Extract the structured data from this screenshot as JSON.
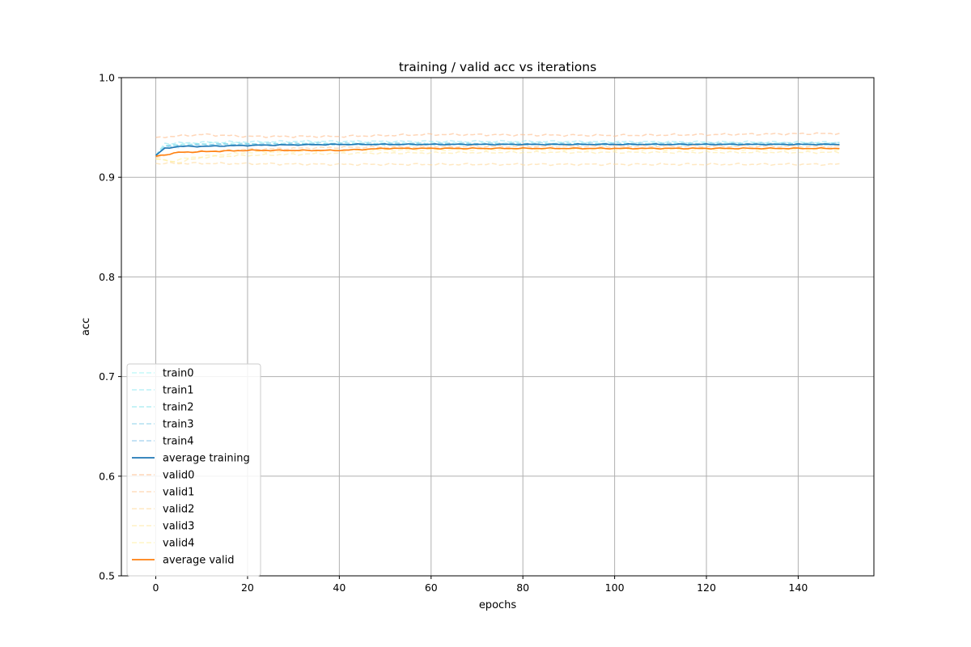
{
  "chart_data": {
    "type": "line",
    "title": "training / valid acc vs iterations",
    "xlabel": "epochs",
    "ylabel": "acc",
    "xlim": [
      -7.5,
      156.5
    ],
    "ylim": [
      0.5,
      1.0
    ],
    "xticks": [
      0,
      20,
      40,
      60,
      80,
      100,
      120,
      140
    ],
    "yticks": [
      0.5,
      0.6,
      0.7,
      0.8,
      0.9,
      1.0
    ],
    "ytick_labels": [
      "0.5",
      "0.6",
      "0.7",
      "0.8",
      "0.9",
      "1.0"
    ],
    "grid": true,
    "legend_position": "lower-left",
    "n_epochs": 150,
    "series": [
      {
        "name": "train0",
        "color": "#9ef3f3",
        "style": "dashed",
        "alpha": 0.6,
        "anchors": [
          [
            0,
            0.922
          ],
          [
            2,
            0.932
          ],
          [
            10,
            0.934
          ],
          [
            30,
            0.934
          ],
          [
            80,
            0.934
          ],
          [
            149,
            0.934
          ]
        ]
      },
      {
        "name": "train1",
        "color": "#8fe6f2",
        "style": "dashed",
        "alpha": 0.6,
        "anchors": [
          [
            0,
            0.922
          ],
          [
            2,
            0.934
          ],
          [
            10,
            0.935
          ],
          [
            30,
            0.936
          ],
          [
            80,
            0.936
          ],
          [
            149,
            0.935
          ]
        ]
      },
      {
        "name": "train2",
        "color": "#82e3ec",
        "style": "dashed",
        "alpha": 0.6,
        "anchors": [
          [
            0,
            0.921
          ],
          [
            2,
            0.932
          ],
          [
            10,
            0.933
          ],
          [
            30,
            0.933
          ],
          [
            80,
            0.933
          ],
          [
            149,
            0.933
          ]
        ]
      },
      {
        "name": "train3",
        "color": "#7fcde6",
        "style": "dashed",
        "alpha": 0.6,
        "anchors": [
          [
            0,
            0.922
          ],
          [
            2,
            0.931
          ],
          [
            10,
            0.933
          ],
          [
            30,
            0.934
          ],
          [
            80,
            0.934
          ],
          [
            149,
            0.934
          ]
        ]
      },
      {
        "name": "train4",
        "color": "#7fbfe6",
        "style": "dashed",
        "alpha": 0.6,
        "anchors": [
          [
            0,
            0.922
          ],
          [
            2,
            0.93
          ],
          [
            10,
            0.932
          ],
          [
            30,
            0.933
          ],
          [
            80,
            0.933
          ],
          [
            149,
            0.933
          ]
        ]
      },
      {
        "name": "average training",
        "color": "#1f77b4",
        "style": "solid",
        "alpha": 1.0,
        "anchors": [
          [
            0,
            0.922
          ],
          [
            2,
            0.929
          ],
          [
            5,
            0.931
          ],
          [
            10,
            0.931
          ],
          [
            20,
            0.932
          ],
          [
            40,
            0.933
          ],
          [
            80,
            0.933
          ],
          [
            149,
            0.933
          ]
        ]
      },
      {
        "name": "valid0",
        "color": "#ffbb88",
        "style": "dashed",
        "alpha": 0.6,
        "anchors": [
          [
            0,
            0.94
          ],
          [
            10,
            0.943
          ],
          [
            20,
            0.941
          ],
          [
            40,
            0.941
          ],
          [
            60,
            0.943
          ],
          [
            100,
            0.942
          ],
          [
            149,
            0.944
          ]
        ]
      },
      {
        "name": "valid1",
        "color": "#ffc894",
        "style": "dashed",
        "alpha": 0.6,
        "anchors": [
          [
            0,
            0.92
          ],
          [
            5,
            0.925
          ],
          [
            20,
            0.928
          ],
          [
            40,
            0.93
          ],
          [
            80,
            0.931
          ],
          [
            149,
            0.931
          ]
        ]
      },
      {
        "name": "valid2",
        "color": "#ffd89a",
        "style": "dashed",
        "alpha": 0.6,
        "anchors": [
          [
            0,
            0.914
          ],
          [
            10,
            0.914
          ],
          [
            40,
            0.913
          ],
          [
            80,
            0.913
          ],
          [
            149,
            0.913
          ]
        ]
      },
      {
        "name": "valid3",
        "color": "#ffe79c",
        "style": "dashed",
        "alpha": 0.6,
        "anchors": [
          [
            0,
            0.918
          ],
          [
            5,
            0.915
          ],
          [
            10,
            0.92
          ],
          [
            20,
            0.922
          ],
          [
            40,
            0.924
          ],
          [
            80,
            0.925
          ],
          [
            149,
            0.925
          ]
        ]
      },
      {
        "name": "valid4",
        "color": "#fff0a0",
        "style": "dashed",
        "alpha": 0.6,
        "anchors": [
          [
            0,
            0.919
          ],
          [
            3,
            0.916
          ],
          [
            8,
            0.92
          ],
          [
            20,
            0.925
          ],
          [
            40,
            0.927
          ],
          [
            80,
            0.928
          ],
          [
            149,
            0.928
          ]
        ]
      },
      {
        "name": "average valid",
        "color": "#ff7f0e",
        "style": "solid",
        "alpha": 1.0,
        "anchors": [
          [
            0,
            0.921
          ],
          [
            5,
            0.925
          ],
          [
            20,
            0.927
          ],
          [
            40,
            0.927
          ],
          [
            50,
            0.929
          ],
          [
            80,
            0.929
          ],
          [
            149,
            0.929
          ]
        ]
      }
    ]
  }
}
